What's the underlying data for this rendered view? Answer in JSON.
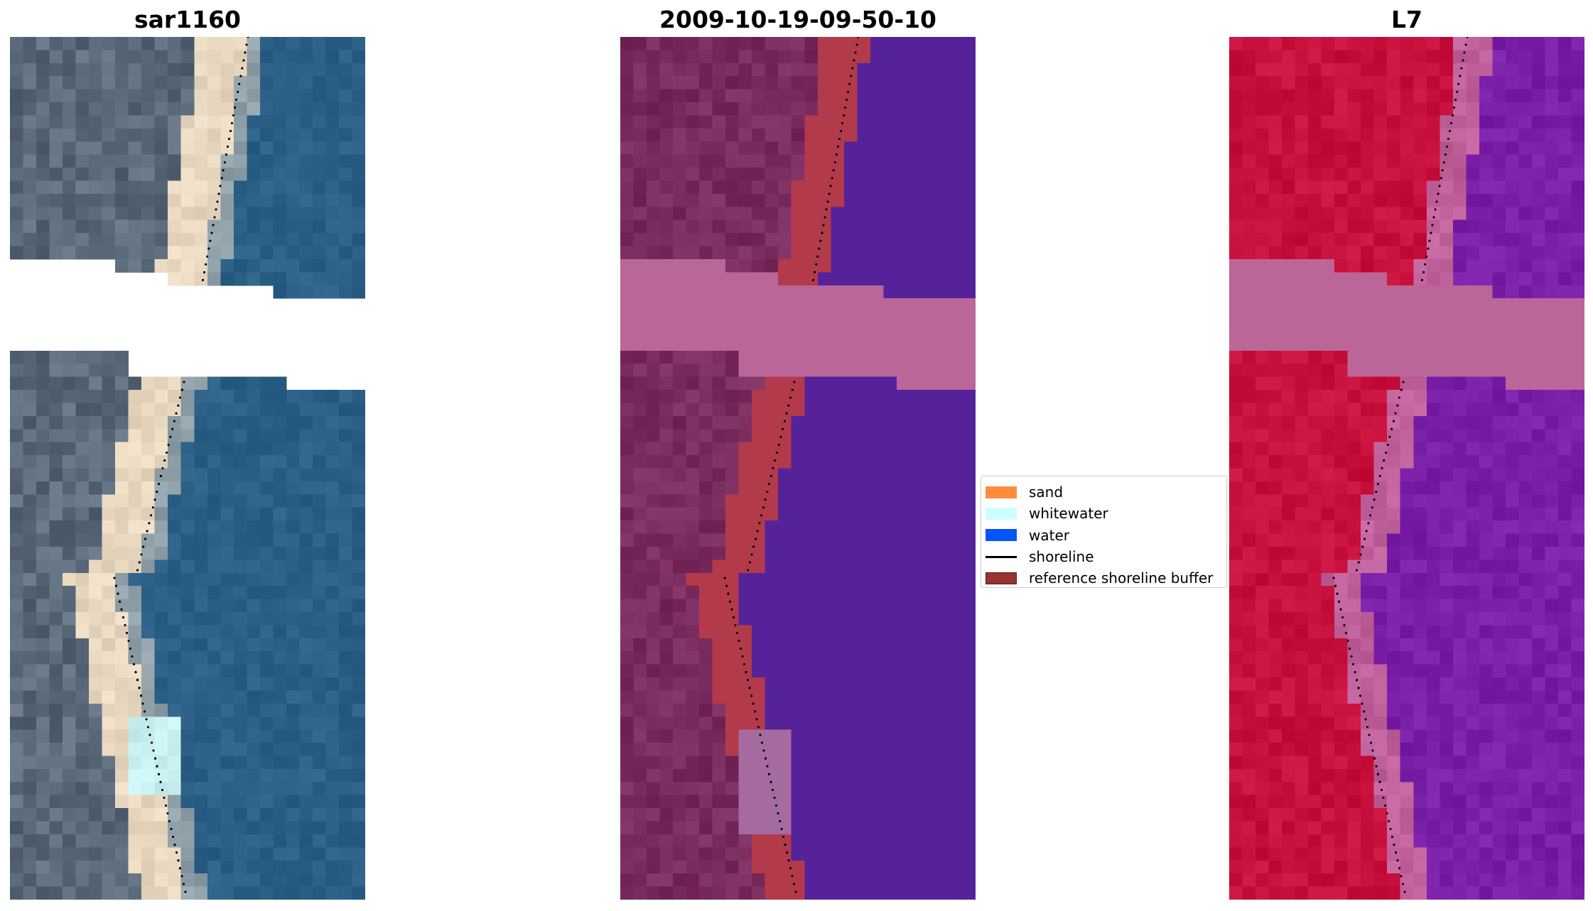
{
  "panels": [
    {
      "title": "sar1160",
      "style": "true-color",
      "colors": {
        "land": "#5b6a7a",
        "sand": "#e8d8c0",
        "water": "#2b5f86",
        "whitewater": "#c8f0f0"
      }
    },
    {
      "title": "2009-10-19-09-50-10",
      "style": "classified",
      "colors": {
        "land": "#7a2b5e",
        "sand": "#b23a4a",
        "water": "#55229a",
        "cloud": "#bb6699"
      }
    },
    {
      "title": "L7",
      "style": "ndwi",
      "colors": {
        "land": "#c8103c",
        "transition": "#c0609a",
        "water": "#7a20a8",
        "cloud": "#bb6699"
      }
    }
  ],
  "legend": {
    "items": [
      {
        "label": "sand",
        "color": "#ff8c3c",
        "kind": "patch"
      },
      {
        "label": "whitewater",
        "color": "#ccffff",
        "kind": "patch"
      },
      {
        "label": "water",
        "color": "#0055ff",
        "kind": "patch"
      },
      {
        "label": "shoreline",
        "color": "#000000",
        "kind": "line"
      },
      {
        "label": "reference shoreline buffer",
        "color": "#993333",
        "kind": "patch"
      }
    ]
  }
}
